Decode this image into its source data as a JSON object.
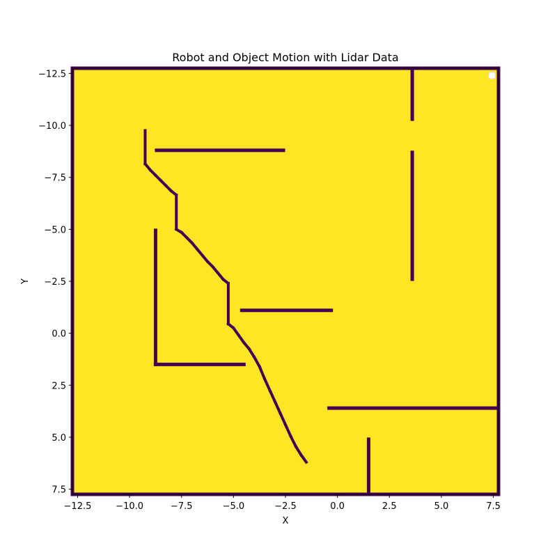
{
  "chart_data": {
    "type": "heatmap",
    "title": "Robot and Object Motion with Lidar Data",
    "xlabel": "X",
    "ylabel": "Y",
    "xlim": [
      -12.75,
      7.75
    ],
    "ylim": [
      7.75,
      -12.75
    ],
    "y_axis_inverted": true,
    "colormap": "viridis",
    "colors": {
      "free": "#fde725",
      "occupied": "#440154"
    },
    "xticks": [
      -12.5,
      -10.0,
      -7.5,
      -5.0,
      -2.5,
      0.0,
      2.5,
      5.0,
      7.5
    ],
    "yticks": [
      -12.5,
      -10.0,
      -7.5,
      -5.0,
      -2.5,
      0.0,
      2.5,
      5.0,
      7.5
    ],
    "xtick_labels": [
      "−12.5",
      "−10.0",
      "−7.5",
      "−5.0",
      "−2.5",
      "0.0",
      "2.5",
      "5.0",
      "7.5"
    ],
    "ytick_labels": [
      "−12.5",
      "−10.0",
      "−7.5",
      "−5.0",
      "−2.5",
      "0.0",
      "2.5",
      "5.0",
      "7.5"
    ],
    "grid": false,
    "legend": {
      "placement": "upper right",
      "entries": []
    },
    "walls": [
      {
        "x1": -12.75,
        "y1": -12.75,
        "x2": 7.75,
        "y2": -12.75
      },
      {
        "x1": -12.75,
        "y1": 7.75,
        "x2": 7.75,
        "y2": 7.75
      },
      {
        "x1": -12.75,
        "y1": -12.75,
        "x2": -12.75,
        "y2": 7.75
      },
      {
        "x1": 7.75,
        "y1": -12.75,
        "x2": 7.75,
        "y2": 7.75
      },
      {
        "x1": -8.7,
        "y1": -8.8,
        "x2": -2.6,
        "y2": -8.8
      },
      {
        "x1": -4.6,
        "y1": -1.1,
        "x2": -0.3,
        "y2": -1.1
      },
      {
        "x1": -8.75,
        "y1": -4.95,
        "x2": -8.75,
        "y2": 1.5
      },
      {
        "x1": -8.75,
        "y1": 1.5,
        "x2": -4.5,
        "y2": 1.5
      },
      {
        "x1": 3.6,
        "y1": -12.75,
        "x2": 3.6,
        "y2": -10.3
      },
      {
        "x1": 3.6,
        "y1": -8.7,
        "x2": 3.6,
        "y2": -2.6
      },
      {
        "x1": -0.4,
        "y1": 3.6,
        "x2": 7.75,
        "y2": 3.6
      },
      {
        "x1": 1.5,
        "y1": 5.1,
        "x2": 1.5,
        "y2": 7.75
      }
    ],
    "trajectory": {
      "x": [
        -9.25,
        -9.25,
        -9.0,
        -8.75,
        -8.5,
        -8.25,
        -8.0,
        -7.75,
        -7.75,
        -7.5,
        -7.25,
        -7.0,
        -6.75,
        -6.5,
        -6.25,
        -6.0,
        -5.75,
        -5.5,
        -5.25,
        -5.25,
        -5.0,
        -4.75,
        -4.5,
        -4.25,
        -4.0,
        -3.75,
        -3.5,
        -3.25,
        -3.0,
        -2.75,
        -2.5,
        -2.25,
        -2.0,
        -1.75,
        -1.5
      ],
      "y": [
        -9.75,
        -8.15,
        -7.85,
        -7.6,
        -7.35,
        -7.1,
        -6.85,
        -6.65,
        -5.0,
        -4.85,
        -4.6,
        -4.35,
        -4.05,
        -3.75,
        -3.45,
        -3.2,
        -2.9,
        -2.6,
        -2.4,
        -0.45,
        -0.25,
        0.1,
        0.45,
        0.75,
        1.15,
        1.6,
        2.2,
        2.75,
        3.3,
        3.85,
        4.4,
        4.95,
        5.45,
        5.85,
        6.2
      ]
    }
  }
}
